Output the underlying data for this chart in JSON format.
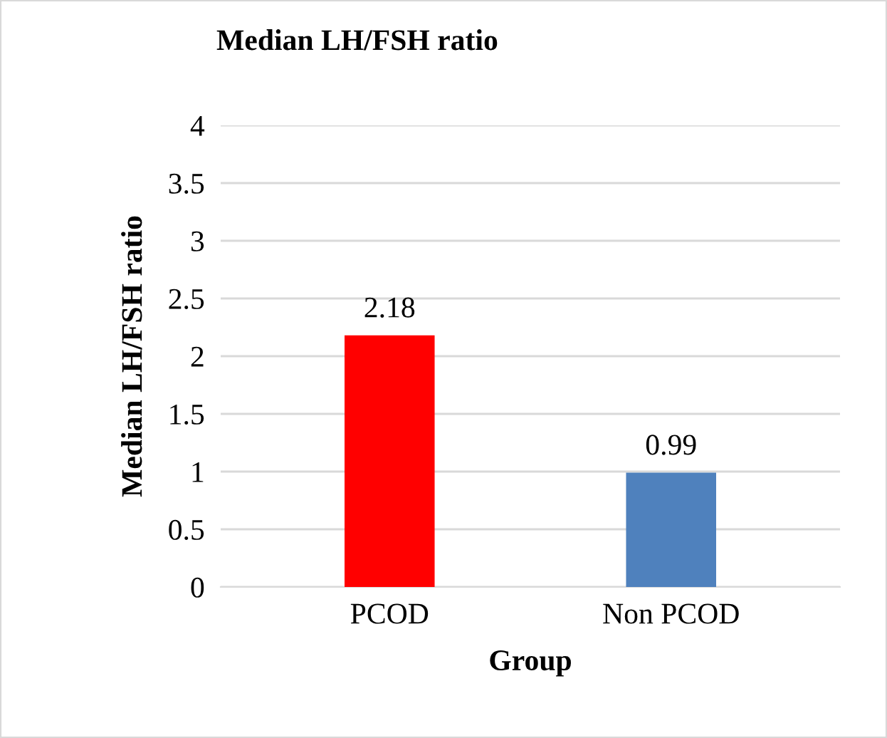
{
  "chart_data": {
    "type": "bar",
    "title": "Median LH/FSH ratio",
    "xlabel": "Group",
    "ylabel": "Median LH/FSH ratio",
    "categories": [
      "PCOD",
      "Non PCOD"
    ],
    "values": [
      2.18,
      0.99
    ],
    "colors": [
      "#ff0000",
      "#4f81bd"
    ],
    "ylim": [
      0,
      4
    ],
    "yticks": [
      0,
      0.5,
      1,
      1.5,
      2,
      2.5,
      3,
      3.5,
      4
    ],
    "grid": "y",
    "data_labels": true
  }
}
